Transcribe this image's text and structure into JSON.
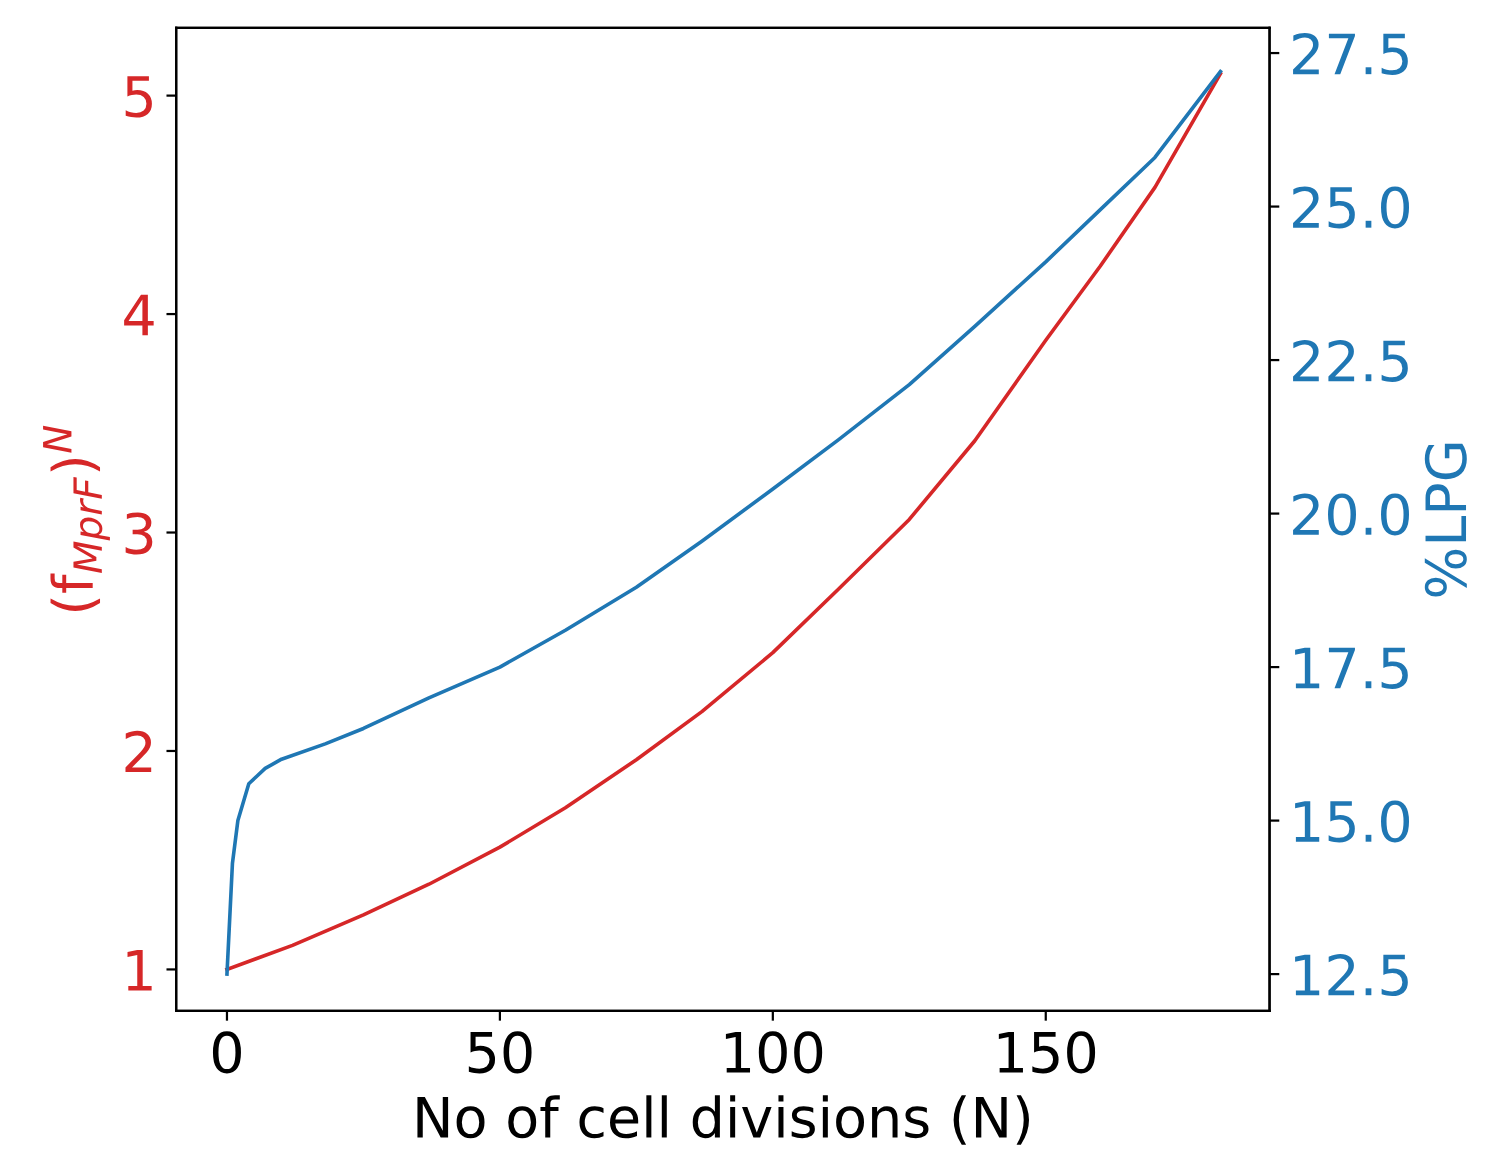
{
  "chart_data": {
    "type": "line",
    "xlabel": "No of cell divisions (N)",
    "ylabel": "(f$_{MprF}$)$^{N}$",
    "y2label": "%LPG",
    "xlim": [
      -9.3,
      191
    ],
    "xticks": [
      0,
      50,
      100,
      150
    ],
    "ylim": [
      0.81,
      5.31
    ],
    "yticks": [
      1,
      2,
      3,
      4,
      5
    ],
    "y2lim": [
      11.9,
      27.91
    ],
    "y2ticks": [
      {
        "value": 12.5,
        "label": "12.5"
      },
      {
        "value": 15,
        "label": "15.0"
      },
      {
        "value": 17.5,
        "label": "17.5"
      },
      {
        "value": 20,
        "label": "20.0"
      },
      {
        "value": 22.5,
        "label": "22.5"
      },
      {
        "value": 25,
        "label": "25.0"
      },
      {
        "value": 27.5,
        "label": "27.5"
      }
    ],
    "grid": false,
    "legend": false,
    "marker": "none",
    "line_style": "solid",
    "series": [
      {
        "color": "#d62728",
        "x": [
          0,
          12,
          25,
          37,
          50,
          62,
          75,
          87,
          100,
          112,
          125,
          137,
          150,
          160,
          170,
          182
        ],
        "values": [
          1.0,
          1.11,
          1.25,
          1.39,
          1.56,
          1.74,
          1.96,
          2.18,
          2.45,
          2.74,
          3.06,
          3.42,
          3.88,
          4.22,
          4.58,
          5.1
        ]
      },
      {
        "color": "#1f77b4",
        "axis": "y2",
        "x": [
          0,
          1,
          2,
          4,
          7,
          10,
          18,
          25,
          37,
          50,
          62,
          75,
          87,
          100,
          112,
          125,
          137,
          150,
          160,
          170,
          182
        ],
        "values": [
          12.5,
          14.3,
          15.0,
          15.6,
          15.85,
          16.0,
          16.25,
          16.5,
          17.0,
          17.5,
          18.1,
          18.8,
          19.55,
          20.4,
          21.2,
          22.1,
          23.05,
          24.1,
          24.95,
          25.8,
          27.2
        ]
      }
    ]
  }
}
